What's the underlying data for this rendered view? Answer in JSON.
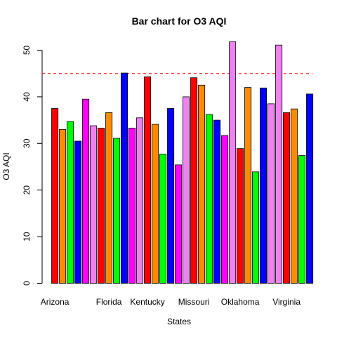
{
  "chart_data": {
    "type": "bar",
    "title": "Bar chart for O3 AQI",
    "xlabel": "States",
    "ylabel": "O3 AQI",
    "ylim": [
      0,
      52
    ],
    "yticks": [
      0,
      10,
      20,
      30,
      40,
      50
    ],
    "reference_line": {
      "value": 45,
      "color": "#ff0000",
      "style": "dashed"
    },
    "grid": false,
    "legend": "none",
    "x_tick_labels": [
      {
        "label": "Arizona",
        "bar_index": 0
      },
      {
        "label": "Florida",
        "bar_index": 7
      },
      {
        "label": "Kentucky",
        "bar_index": 12
      },
      {
        "label": "Missouri",
        "bar_index": 18
      },
      {
        "label": "Oklahoma",
        "bar_index": 24
      },
      {
        "label": "Virginia",
        "bar_index": 30
      }
    ],
    "bars": [
      {
        "value": 37.5,
        "color": "#ff0000"
      },
      {
        "value": 33.0,
        "color": "#ff8c00"
      },
      {
        "value": 34.7,
        "color": "#00ff00"
      },
      {
        "value": 30.5,
        "color": "#0000ff"
      },
      {
        "value": 39.5,
        "color": "#ff00ff"
      },
      {
        "value": 33.8,
        "color": "#ee82ee"
      },
      {
        "value": 33.3,
        "color": "#ff0000"
      },
      {
        "value": 36.6,
        "color": "#ff8c00"
      },
      {
        "value": 31.1,
        "color": "#00ff00"
      },
      {
        "value": 45.1,
        "color": "#0000ff"
      },
      {
        "value": 33.3,
        "color": "#ff00ff"
      },
      {
        "value": 35.5,
        "color": "#ee82ee"
      },
      {
        "value": 44.3,
        "color": "#ff0000"
      },
      {
        "value": 34.1,
        "color": "#ff8c00"
      },
      {
        "value": 27.7,
        "color": "#00ff00"
      },
      {
        "value": 37.5,
        "color": "#0000ff"
      },
      {
        "value": 25.4,
        "color": "#ff00ff"
      },
      {
        "value": 40.0,
        "color": "#ee82ee"
      },
      {
        "value": 44.1,
        "color": "#ff0000"
      },
      {
        "value": 42.5,
        "color": "#ff8c00"
      },
      {
        "value": 36.2,
        "color": "#00ff00"
      },
      {
        "value": 35.0,
        "color": "#0000ff"
      },
      {
        "value": 31.7,
        "color": "#ff00ff"
      },
      {
        "value": 51.8,
        "color": "#ee82ee"
      },
      {
        "value": 28.9,
        "color": "#ff0000"
      },
      {
        "value": 42.0,
        "color": "#ff8c00"
      },
      {
        "value": 23.9,
        "color": "#00ff00"
      },
      {
        "value": 41.9,
        "color": "#0000ff"
      },
      {
        "value": 38.5,
        "color": "#ee82ee"
      },
      {
        "value": 51.1,
        "color": "#ee82ee"
      },
      {
        "value": 36.6,
        "color": "#ff0000"
      },
      {
        "value": 37.4,
        "color": "#ff8c00"
      },
      {
        "value": 27.4,
        "color": "#00ff00"
      },
      {
        "value": 40.6,
        "color": "#0000ff"
      }
    ]
  }
}
